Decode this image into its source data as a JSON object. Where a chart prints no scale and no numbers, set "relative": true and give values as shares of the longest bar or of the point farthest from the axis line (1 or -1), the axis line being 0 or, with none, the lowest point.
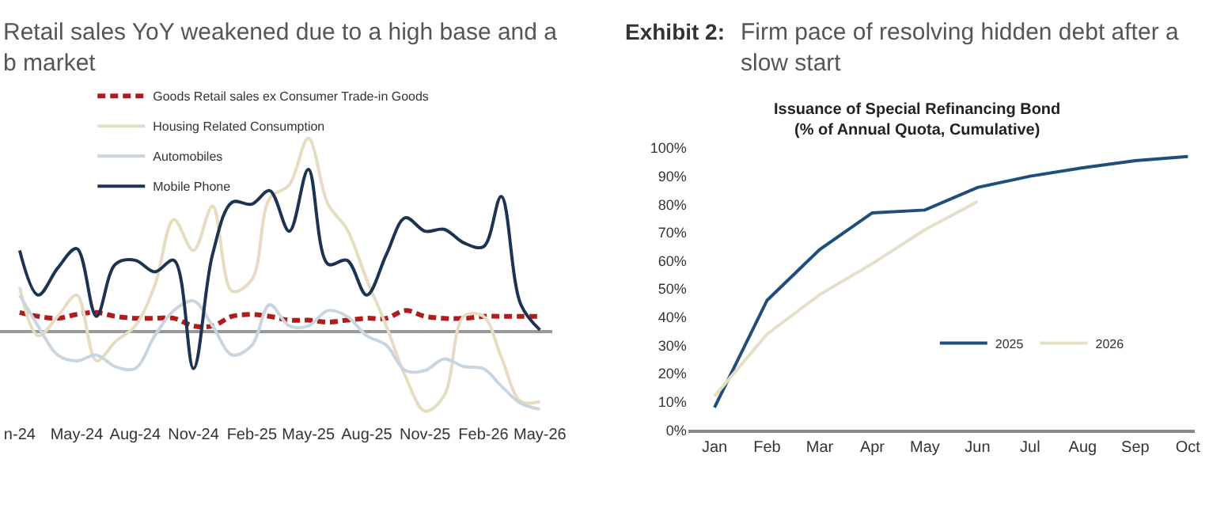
{
  "chart_data": [
    {
      "type": "line",
      "title": "Retail sales YoY weakened due to a high base and a\nb market",
      "relative": true,
      "legend": "top left",
      "x": [
        "2024-02",
        "2024-03",
        "2024-04",
        "2024-05",
        "2024-06",
        "2024-07",
        "2024-08",
        "2024-09",
        "2024-10",
        "2024-11",
        "2024-12",
        "2025-01",
        "2025-02",
        "2025-03",
        "2025-04",
        "2025-05",
        "2025-06",
        "2025-07",
        "2025-08",
        "2025-09",
        "2025-10",
        "2025-11",
        "2025-12",
        "2026-01",
        "2026-02",
        "2026-03",
        "2026-04",
        "2026-05"
      ],
      "xlim": [
        "2024-01-01",
        "2026-05-20"
      ],
      "xticks": [
        {
          "value": "2024-02",
          "label": "n-24"
        },
        {
          "value": "2024-05",
          "label": "May-24"
        },
        {
          "value": "2024-08",
          "label": "Aug-24"
        },
        {
          "value": "2024-11",
          "label": "Nov-24"
        },
        {
          "value": "2025-02",
          "label": "Feb-25"
        },
        {
          "value": "2025-05",
          "label": "May-25"
        },
        {
          "value": "2025-08",
          "label": "Aug-25"
        },
        {
          "value": "2025-11",
          "label": "Nov-25"
        },
        {
          "value": "2026-02",
          "label": "Feb-26"
        },
        {
          "value": "2026-05",
          "label": "May-26"
        }
      ],
      "series": [
        {
          "name": "Goods Retail sales ex Consumer Trade-in Goods",
          "color": "#b01c1c",
          "line_style": "dashed",
          "values": [
            0.1,
            0.08,
            0.07,
            0.09,
            0.1,
            0.08,
            0.07,
            0.07,
            0.07,
            0.03,
            0.03,
            0.08,
            0.09,
            0.08,
            0.06,
            0.06,
            0.05,
            0.06,
            0.07,
            0.07,
            0.11,
            0.08,
            0.07,
            0.07,
            0.08,
            0.08,
            0.08,
            0.08
          ]
        },
        {
          "name": "Housing Related Consumption",
          "color": "#e6dcc2",
          "line_style": "solid",
          "values": [
            0.23,
            -0.02,
            0.08,
            0.19,
            -0.15,
            -0.05,
            0.03,
            0.24,
            0.58,
            0.42,
            0.65,
            0.21,
            0.27,
            0.69,
            0.76,
            1.0,
            0.66,
            0.53,
            0.27,
            0.03,
            -0.23,
            -0.41,
            -0.33,
            0.08,
            0.08,
            -0.13,
            -0.36,
            -0.36
          ]
        },
        {
          "name": "Automobiles",
          "color": "#c9d5df",
          "line_style": "solid",
          "values": [
            0.19,
            0.03,
            -0.12,
            -0.15,
            -0.12,
            -0.18,
            -0.19,
            -0.02,
            0.11,
            0.16,
            0.03,
            -0.12,
            -0.07,
            0.14,
            0.03,
            0.03,
            0.11,
            0.08,
            -0.02,
            -0.07,
            -0.2,
            -0.2,
            -0.14,
            -0.18,
            -0.19,
            -0.28,
            -0.37,
            -0.4
          ]
        },
        {
          "name": "Mobile Phone",
          "color": "#1c3352",
          "line_style": "solid",
          "values": [
            0.42,
            0.19,
            0.33,
            0.43,
            0.08,
            0.35,
            0.37,
            0.31,
            0.37,
            -0.19,
            0.4,
            0.67,
            0.66,
            0.73,
            0.52,
            0.84,
            0.35,
            0.37,
            0.19,
            0.4,
            0.59,
            0.52,
            0.53,
            0.46,
            0.44,
            0.7,
            0.14,
            0.01
          ]
        }
      ]
    },
    {
      "type": "line",
      "title": "Exhibit 2:",
      "subtitle": "Firm pace of resolving hidden debt after a\nslow start",
      "annotations": [
        "Issuance of Special Refinancing Bond\n(% of Annual Quota, Cumulative)"
      ],
      "legend": "bottom right",
      "categories": [
        "Jan",
        "Feb",
        "Mar",
        "Apr",
        "May",
        "Jun",
        "Jul",
        "Aug",
        "Sep",
        "Oct"
      ],
      "ylim": [
        0,
        100
      ],
      "yticks": [
        {
          "value": 0,
          "label": "0%"
        },
        {
          "value": 10,
          "label": "10%"
        },
        {
          "value": 20,
          "label": "20%"
        },
        {
          "value": 30,
          "label": "30%"
        },
        {
          "value": 40,
          "label": "40%"
        },
        {
          "value": 50,
          "label": "50%"
        },
        {
          "value": 60,
          "label": "60%"
        },
        {
          "value": 70,
          "label": "70%"
        },
        {
          "value": 80,
          "label": "80%"
        },
        {
          "value": 90,
          "label": "90%"
        },
        {
          "value": 100,
          "label": "100%"
        }
      ],
      "series": [
        {
          "name": "2025",
          "color": "#1f4e79",
          "values": [
            8,
            46,
            64,
            77,
            78,
            86,
            90,
            93,
            95.5,
            97
          ]
        },
        {
          "name": "2026",
          "color": "#e6dfc8",
          "values": [
            12,
            34,
            48,
            59,
            71,
            81,
            null,
            null,
            null,
            null
          ]
        }
      ]
    }
  ]
}
